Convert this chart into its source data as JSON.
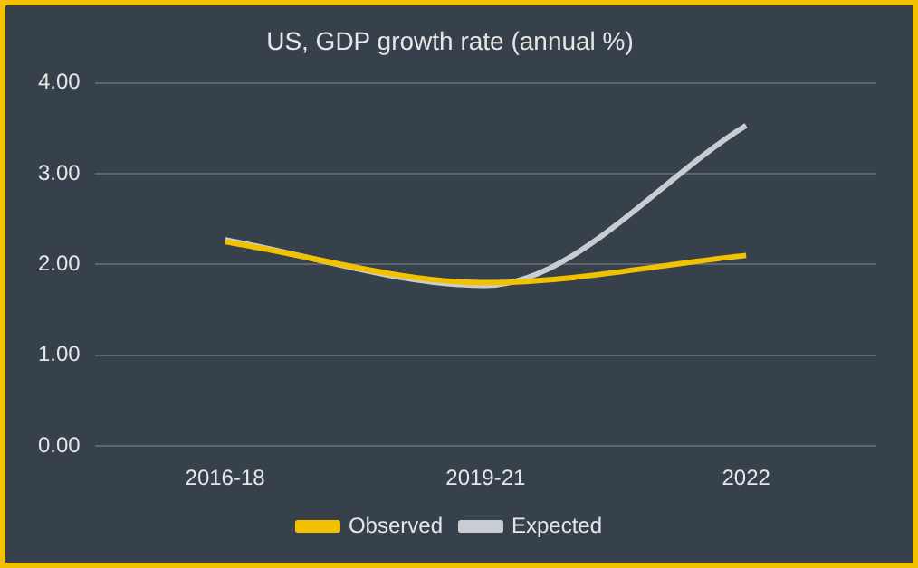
{
  "chart_data": {
    "type": "line",
    "title": "US, GDP growth rate (annual %)",
    "categories": [
      "2016-18",
      "2019-21",
      "2022"
    ],
    "series": [
      {
        "name": "Observed",
        "color": "#f2c200",
        "values": [
          2.25,
          1.8,
          2.1
        ]
      },
      {
        "name": "Expected",
        "color": "#c9cdd2",
        "values": [
          2.27,
          1.77,
          3.53
        ]
      }
    ],
    "ylim": [
      0,
      4
    ],
    "yticks": [
      {
        "value": 0,
        "label": "0.00"
      },
      {
        "value": 1,
        "label": "1.00"
      },
      {
        "value": 2,
        "label": "2.00"
      },
      {
        "value": 3,
        "label": "3.00"
      },
      {
        "value": 4,
        "label": "4.00"
      }
    ],
    "grid": "y",
    "legend": "bottom",
    "marker": "none",
    "line_style": "solid"
  }
}
